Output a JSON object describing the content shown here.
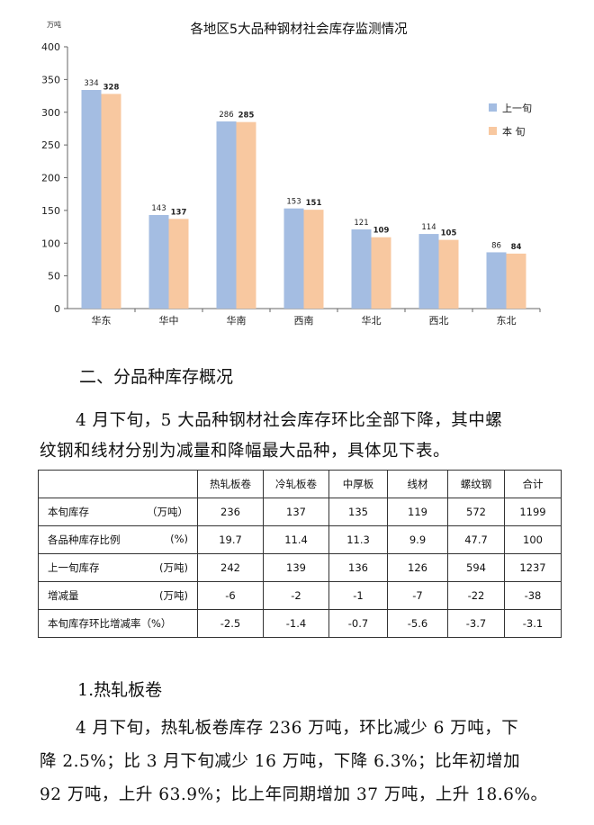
{
  "chart_data": {
    "type": "bar",
    "title": "各地区5大品种钢材社会库存监测情况",
    "yunit": "万吨",
    "ylim": [
      0,
      400
    ],
    "yticks": [
      0,
      50,
      100,
      150,
      200,
      250,
      300,
      350,
      400
    ],
    "categories": [
      "华东",
      "华中",
      "华南",
      "西南",
      "华北",
      "西北",
      "东北"
    ],
    "series": [
      {
        "name": "上一旬",
        "color": "#a4bde2",
        "values": [
          334,
          143,
          286,
          153,
          121,
          114,
          86
        ]
      },
      {
        "name": "本  旬",
        "color": "#f8c8a0",
        "values": [
          328,
          137,
          285,
          151,
          109,
          105,
          84
        ]
      }
    ],
    "legend": "right"
  },
  "section2": {
    "heading": "二、分品种库存概况",
    "para_line1": "4 月下旬，5 大品种钢材社会库存环比全部下降，其中螺",
    "para_line2": "纹钢和线材分别为减量和降幅最大品种，具体见下表。"
  },
  "table": {
    "columns": [
      "热轧板卷",
      "冷轧板卷",
      "中厚板",
      "线材",
      "螺纹钢",
      "合计"
    ],
    "rows": [
      {
        "label": "本旬库存",
        "unit": "（万吨）",
        "cells": [
          "236",
          "137",
          "135",
          "119",
          "572",
          "1199"
        ]
      },
      {
        "label": "各品种库存比例",
        "unit": "(%)",
        "cells": [
          "19.7",
          "11.4",
          "11.3",
          "9.9",
          "47.7",
          "100"
        ]
      },
      {
        "label": "上一旬库存",
        "unit": "(万吨)",
        "cells": [
          "242",
          "139",
          "136",
          "126",
          "594",
          "1237"
        ]
      },
      {
        "label": "增减量",
        "unit": "(万吨)",
        "cells": [
          "-6",
          "-2",
          "-1",
          "-7",
          "-22",
          "-38"
        ]
      },
      {
        "label": "本旬库存环比增减率（%）",
        "unit": "",
        "cells": [
          "-2.5",
          "-1.4",
          "-0.7",
          "-5.6",
          "-3.7",
          "-3.1"
        ]
      }
    ]
  },
  "sub1": {
    "heading": "1.热轧板卷",
    "line1": "4 月下旬，热轧板卷库存 236 万吨，环比减少 6 万吨，下",
    "line2": "降 2.5%；比 3 月下旬减少 16 万吨，下降 6.3%；比年初增加",
    "line3": "92 万吨，上升 63.9%；比上年同期增加 37 万吨，上升 18.6%。"
  }
}
